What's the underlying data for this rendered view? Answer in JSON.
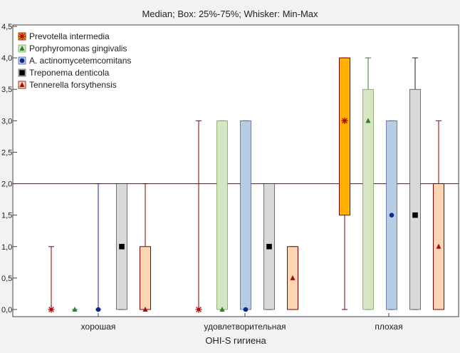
{
  "chart_data": {
    "type": "box",
    "title": "Median; Box: 25%-75%; Whisker: Min-Max",
    "xlabel": "OHI-S гигиена",
    "ylabel": "",
    "ylim": [
      0,
      4.5
    ],
    "yticks": [
      "0,0",
      "0,5",
      "1,0",
      "1,5",
      "2,0",
      "2,5",
      "3,0",
      "3,5",
      "4,0",
      "4,5"
    ],
    "ytick_values": [
      0,
      0.5,
      1.0,
      1.5,
      2.0,
      2.5,
      3.0,
      3.5,
      4.0,
      4.5
    ],
    "reference_line": 2.0,
    "legend_placement": "top-left",
    "categories": [
      "хорошая",
      "удовлетворительная",
      "плохая"
    ],
    "series": [
      {
        "name": "Prevotella intermedia",
        "box_color": "#ffb000",
        "marker": "asterisk",
        "data": [
          {
            "min": 0,
            "q1": 0,
            "median": 0,
            "q3": 0,
            "max": 1.0
          },
          {
            "min": 0,
            "q1": 0,
            "median": 0,
            "q3": 0,
            "max": 3.0
          },
          {
            "min": 0,
            "q1": 1.5,
            "median": 3.0,
            "q3": 4.0,
            "max": 4.0
          }
        ]
      },
      {
        "name": "Porphyromonas gingivalis",
        "box_color": "#d6e6c2",
        "marker": "triangle-green",
        "data": [
          {
            "min": 0,
            "q1": 0,
            "median": 0,
            "q3": 0,
            "max": 0
          },
          {
            "min": 0,
            "q1": 0,
            "median": 0,
            "q3": 3.0,
            "max": 3.0
          },
          {
            "min": 0,
            "q1": 0,
            "median": 3.0,
            "q3": 3.5,
            "max": 4.0
          }
        ]
      },
      {
        "name": "A. actinomycetemcomitans",
        "box_color": "#b8cce4",
        "marker": "circle",
        "data": [
          {
            "min": 0,
            "q1": 0,
            "median": 0,
            "q3": 0,
            "max": 2.0
          },
          {
            "min": 0,
            "q1": 0,
            "median": 0,
            "q3": 3.0,
            "max": 3.0
          },
          {
            "min": 0,
            "q1": 0,
            "median": 1.5,
            "q3": 3.0,
            "max": 3.0
          }
        ]
      },
      {
        "name": "Treponema denticola",
        "box_color": "#d9d9d9",
        "marker": "square",
        "data": [
          {
            "min": 0,
            "q1": 0,
            "median": 1.0,
            "q3": 2.0,
            "max": 2.0
          },
          {
            "min": 0,
            "q1": 0,
            "median": 1.0,
            "q3": 2.0,
            "max": 2.0
          },
          {
            "min": 0,
            "q1": 0,
            "median": 1.5,
            "q3": 3.5,
            "max": 4.0
          }
        ]
      },
      {
        "name": "Tennerella forsythensis",
        "box_color": "#fcd5b5",
        "marker": "triangle-red",
        "data": [
          {
            "min": 0,
            "q1": 0,
            "median": 0,
            "q3": 1.0,
            "max": 2.0
          },
          {
            "min": 0,
            "q1": 0,
            "median": 0.5,
            "q3": 1.0,
            "max": 1.0
          },
          {
            "min": 0,
            "q1": 0,
            "median": 1.0,
            "q3": 2.0,
            "max": 3.0
          }
        ]
      }
    ]
  }
}
